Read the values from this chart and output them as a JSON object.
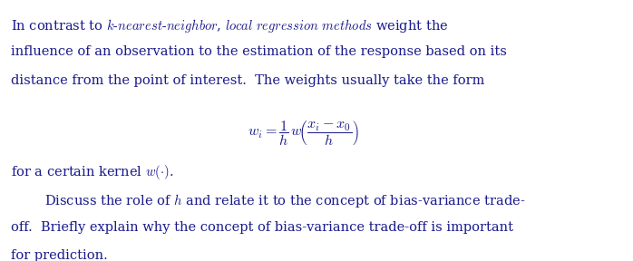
{
  "bg_color": "#ffffff",
  "text_color": "#1a1a8c",
  "fig_width": 6.98,
  "fig_height": 2.88,
  "dpi": 100,
  "line1": "In contrast to $k\\text{-}nearest\\text{-}neighbor$, $local\\ regression\\ methods$ weight the",
  "line2": "influence of an observation to the estimation of the response based on its",
  "line3": "distance from the point of interest.  The weights usually take the form",
  "formula": "$w_i = \\dfrac{1}{h}\\,w\\!\\left(\\dfrac{x_i - x_0}{h}\\right)$",
  "line4": "for a certain kernel $w(\\cdot)$.",
  "line5": "Discuss the role of $h$ and relate it to the concept of bias-variance trade-",
  "line6": "off.  Briefly explain why the concept of bias-variance trade-off is important",
  "line7": "for prediction."
}
